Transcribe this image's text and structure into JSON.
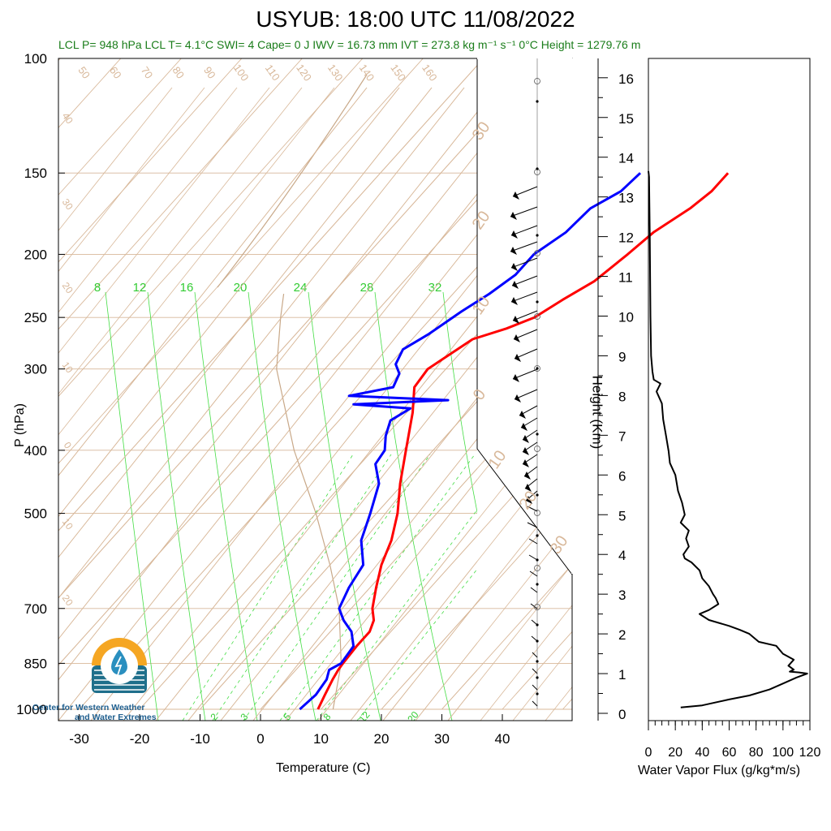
{
  "title": "USYUB: 18:00 UTC 11/08/2022",
  "indices": "LCL P= 948 hPa  LCL T= 4.1°C  SWI= 4  Cape= 0 J  IWV = 16.73 mm  IVT = 273.8 kg m⁻¹ s⁻¹  0°C Height = 1279.76 m",
  "logo": {
    "line1": "Center for Western Weather",
    "line2": "and Water Extremes",
    "colors": {
      "sun": "#f5a623",
      "water": "#1f6f8b",
      "drop": "#2a8fbf"
    }
  },
  "chart_data": [
    {
      "type": "line",
      "name": "skew-T log-P sounding",
      "xlabel": "Temperature (C)",
      "ylabel": "P (hPa)",
      "x_ticks": [
        "-30",
        "-20",
        "-10",
        "0",
        "10",
        "20",
        "30",
        "40"
      ],
      "y_ticks": [
        "100",
        "150",
        "200",
        "250",
        "300",
        "400",
        "500",
        "700",
        "850",
        "1000"
      ],
      "mixing_ratio_labels": [
        "8",
        "12",
        "16",
        "20",
        "24",
        "28",
        "32"
      ],
      "mixing_ratio_labels_bottom": [
        "2",
        "3",
        "5",
        "8",
        "12",
        "20"
      ],
      "dry_adiabat_labels": [
        "50",
        "60",
        "70",
        "80",
        "90",
        "100",
        "110",
        "120",
        "130",
        "140",
        "150",
        "160"
      ],
      "isotherm_labels_left": [
        "40",
        "30",
        "20",
        "10",
        "0",
        "10",
        "20"
      ],
      "isotherm_labels_right": [
        "30",
        "20",
        "10",
        "0",
        "10",
        "20",
        "30"
      ],
      "colors": {
        "temperature": "#ff0000",
        "dewpoint": "#0000ff",
        "isotherm": "#d8b89a",
        "mixing": "#44dd44",
        "parcel": "#c8a888"
      },
      "series": [
        {
          "name": "Temperature",
          "points": [
            [
              1000,
              9.5
            ],
            [
              950,
              8.5
            ],
            [
              900,
              7.5
            ],
            [
              870,
              7
            ],
            [
              850,
              6.8
            ],
            [
              800,
              6.5
            ],
            [
              760,
              6.5
            ],
            [
              730,
              5.5
            ],
            [
              700,
              3.5
            ],
            [
              650,
              1.0
            ],
            [
              600,
              -1.5
            ],
            [
              550,
              -3.5
            ],
            [
              500,
              -6.5
            ],
            [
              450,
              -10.5
            ],
            [
              400,
              -14.5
            ],
            [
              350,
              -19
            ],
            [
              320,
              -22.5
            ],
            [
              300,
              -23
            ],
            [
              290,
              -22
            ],
            [
              270,
              -20
            ],
            [
              260,
              -16
            ],
            [
              250,
              -13
            ],
            [
              235,
              -11
            ],
            [
              220,
              -8.5
            ],
            [
              200,
              -7
            ],
            [
              185,
              -6
            ],
            [
              170,
              -3.5
            ],
            [
              160,
              -2.5
            ],
            [
              150,
              -2.5
            ]
          ]
        },
        {
          "name": "Dewpoint",
          "points": [
            [
              1000,
              6.5
            ],
            [
              950,
              7.0
            ],
            [
              900,
              6.5
            ],
            [
              870,
              5.5
            ],
            [
              850,
              6.5
            ],
            [
              800,
              6.0
            ],
            [
              760,
              3.5
            ],
            [
              730,
              0.5
            ],
            [
              700,
              -2.0
            ],
            [
              650,
              -3.5
            ],
            [
              600,
              -4.5
            ],
            [
              550,
              -8.5
            ],
            [
              500,
              -11.0
            ],
            [
              450,
              -14.0
            ],
            [
              420,
              -17.5
            ],
            [
              400,
              -18.0
            ],
            [
              380,
              -20.0
            ],
            [
              360,
              -21.5
            ],
            [
              345,
              -20.0
            ],
            [
              340,
              -30.0
            ],
            [
              335,
              -15.0
            ],
            [
              330,
              -32.0
            ],
            [
              320,
              -26.0
            ],
            [
              305,
              -27.0
            ],
            [
              295,
              -29.0
            ],
            [
              280,
              -30.0
            ],
            [
              265,
              -28.0
            ],
            [
              245,
              -26.0
            ],
            [
              230,
              -24.0
            ],
            [
              215,
              -22.5
            ],
            [
              200,
              -22.5
            ],
            [
              185,
              -20.5
            ],
            [
              170,
              -20.0
            ],
            [
              160,
              -17.5
            ],
            [
              150,
              -17.0
            ]
          ]
        }
      ]
    },
    {
      "type": "line",
      "name": "water vapor flux profile",
      "xlabel": "Water Vapor Flux (g/kg*m/s)",
      "ylabel": "Height (Km)",
      "x_ticks": [
        "0",
        "20",
        "40",
        "60",
        "80",
        "100",
        "120"
      ],
      "y_ticks": [
        "0",
        "1",
        "2",
        "3",
        "4",
        "5",
        "6",
        "7",
        "8",
        "9",
        "10",
        "11",
        "12",
        "13",
        "14",
        "15",
        "16"
      ],
      "xlim": [
        0,
        120
      ],
      "ylim": [
        0,
        16.3
      ],
      "series": [
        {
          "name": "Water Vapor Flux",
          "points": [
            [
              24,
              0.15
            ],
            [
              40,
              0.2
            ],
            [
              60,
              0.35
            ],
            [
              75,
              0.45
            ],
            [
              90,
              0.6
            ],
            [
              100,
              0.75
            ],
            [
              110,
              0.9
            ],
            [
              118,
              1.0
            ],
            [
              112,
              1.03
            ],
            [
              105,
              1.05
            ],
            [
              108,
              1.1
            ],
            [
              104,
              1.2
            ],
            [
              108,
              1.35
            ],
            [
              100,
              1.5
            ],
            [
              95,
              1.7
            ],
            [
              82,
              1.8
            ],
            [
              75,
              2.0
            ],
            [
              68,
              2.1
            ],
            [
              60,
              2.2
            ],
            [
              45,
              2.35
            ],
            [
              38,
              2.5
            ],
            [
              45,
              2.6
            ],
            [
              52,
              2.75
            ],
            [
              50,
              2.9
            ],
            [
              48,
              3.0
            ],
            [
              45,
              3.2
            ],
            [
              40,
              3.4
            ],
            [
              38,
              3.6
            ],
            [
              32,
              3.8
            ],
            [
              27,
              3.9
            ],
            [
              26,
              4.0
            ],
            [
              30,
              4.2
            ],
            [
              28,
              4.4
            ],
            [
              30,
              4.6
            ],
            [
              24,
              4.8
            ],
            [
              27,
              5.0
            ],
            [
              25,
              5.3
            ],
            [
              22,
              5.6
            ],
            [
              20,
              6.0
            ],
            [
              16,
              6.3
            ],
            [
              15,
              6.6
            ],
            [
              13,
              7.0
            ],
            [
              11,
              7.4
            ],
            [
              10,
              7.8
            ],
            [
              6,
              8.1
            ],
            [
              9,
              8.3
            ],
            [
              4,
              8.4
            ],
            [
              3,
              8.6
            ],
            [
              2,
              9.0
            ],
            [
              1.5,
              10.0
            ],
            [
              1,
              12.0
            ],
            [
              0.5,
              13.5
            ],
            [
              0,
              13.65
            ]
          ]
        }
      ]
    }
  ]
}
